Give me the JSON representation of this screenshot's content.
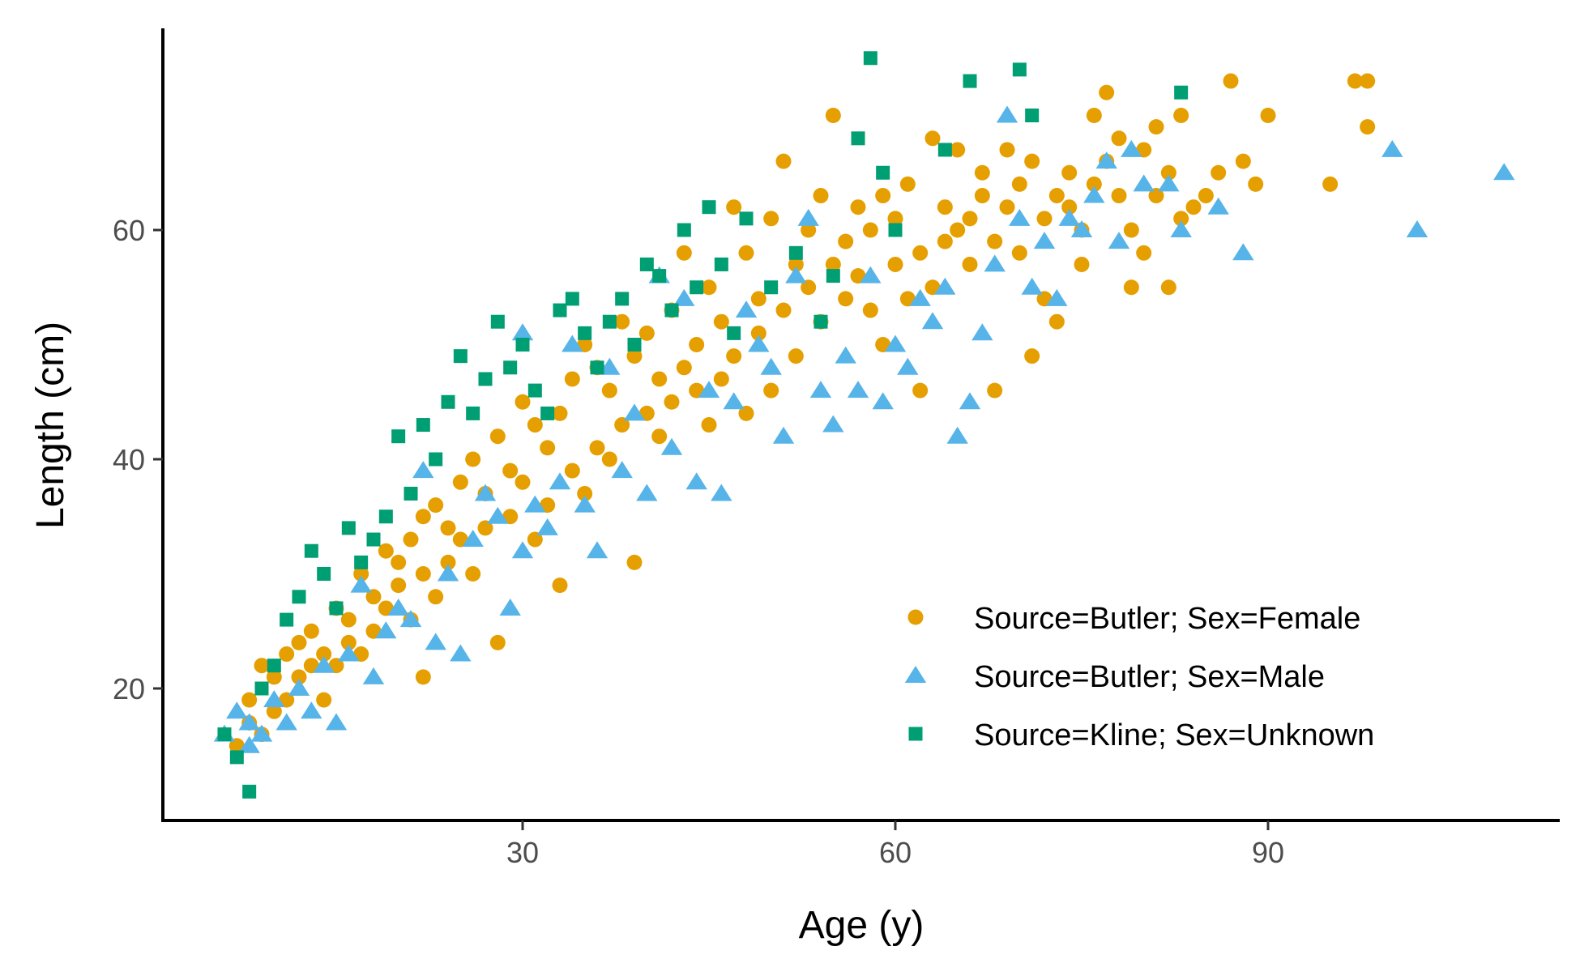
{
  "chart_data": {
    "type": "scatter",
    "xlabel": "Age (y)",
    "ylabel": "Length (cm)",
    "xlim": [
      0,
      113
    ],
    "ylim": [
      9,
      77
    ],
    "x_ticks": [
      {
        "value": 30,
        "label": "30"
      },
      {
        "value": 60,
        "label": "60"
      },
      {
        "value": 90,
        "label": "90"
      }
    ],
    "y_ticks": [
      {
        "value": 20,
        "label": "20"
      },
      {
        "value": 40,
        "label": "40"
      },
      {
        "value": 60,
        "label": "60"
      }
    ],
    "grid": false,
    "legend_position": "bottom-right",
    "series": [
      {
        "name": "Source=Butler; Sex=Female",
        "marker": "circle",
        "color": "#E69F00",
        "points": [
          [
            7,
            15
          ],
          [
            8,
            17
          ],
          [
            8,
            19
          ],
          [
            9,
            22
          ],
          [
            9,
            16
          ],
          [
            10,
            18
          ],
          [
            10,
            21
          ],
          [
            11,
            23
          ],
          [
            11,
            19
          ],
          [
            12,
            24
          ],
          [
            12,
            21
          ],
          [
            13,
            22
          ],
          [
            13,
            25
          ],
          [
            14,
            19
          ],
          [
            14,
            23
          ],
          [
            15,
            27
          ],
          [
            15,
            22
          ],
          [
            16,
            26
          ],
          [
            16,
            24
          ],
          [
            17,
            30
          ],
          [
            17,
            23
          ],
          [
            18,
            28
          ],
          [
            18,
            25
          ],
          [
            19,
            32
          ],
          [
            19,
            27
          ],
          [
            20,
            29
          ],
          [
            20,
            31
          ],
          [
            21,
            33
          ],
          [
            21,
            26
          ],
          [
            22,
            35
          ],
          [
            22,
            30
          ],
          [
            22,
            21
          ],
          [
            23,
            36
          ],
          [
            23,
            28
          ],
          [
            24,
            34
          ],
          [
            24,
            31
          ],
          [
            25,
            38
          ],
          [
            25,
            33
          ],
          [
            26,
            40
          ],
          [
            26,
            30
          ],
          [
            27,
            37
          ],
          [
            27,
            34
          ],
          [
            28,
            42
          ],
          [
            28,
            24
          ],
          [
            29,
            39
          ],
          [
            29,
            35
          ],
          [
            30,
            45
          ],
          [
            30,
            38
          ],
          [
            31,
            43
          ],
          [
            31,
            33
          ],
          [
            32,
            41
          ],
          [
            32,
            36
          ],
          [
            33,
            44
          ],
          [
            33,
            29
          ],
          [
            34,
            47
          ],
          [
            34,
            39
          ],
          [
            35,
            50
          ],
          [
            35,
            37
          ],
          [
            36,
            48
          ],
          [
            36,
            41
          ],
          [
            37,
            46
          ],
          [
            37,
            40
          ],
          [
            38,
            52
          ],
          [
            38,
            43
          ],
          [
            39,
            49
          ],
          [
            39,
            31
          ],
          [
            40,
            51
          ],
          [
            40,
            44
          ],
          [
            41,
            47
          ],
          [
            41,
            42
          ],
          [
            42,
            53
          ],
          [
            42,
            45
          ],
          [
            43,
            58
          ],
          [
            43,
            48
          ],
          [
            44,
            50
          ],
          [
            44,
            46
          ],
          [
            45,
            55
          ],
          [
            45,
            43
          ],
          [
            46,
            52
          ],
          [
            46,
            47
          ],
          [
            47,
            62
          ],
          [
            47,
            49
          ],
          [
            48,
            58
          ],
          [
            48,
            44
          ],
          [
            49,
            54
          ],
          [
            49,
            51
          ],
          [
            50,
            61
          ],
          [
            50,
            46
          ],
          [
            51,
            66
          ],
          [
            51,
            53
          ],
          [
            52,
            57
          ],
          [
            52,
            49
          ],
          [
            53,
            60
          ],
          [
            53,
            55
          ],
          [
            54,
            63
          ],
          [
            54,
            52
          ],
          [
            55,
            70
          ],
          [
            55,
            57
          ],
          [
            56,
            59
          ],
          [
            56,
            54
          ],
          [
            57,
            62
          ],
          [
            57,
            56
          ],
          [
            58,
            53
          ],
          [
            58,
            60
          ],
          [
            59,
            63
          ],
          [
            59,
            50
          ],
          [
            60,
            57
          ],
          [
            60,
            61
          ],
          [
            61,
            64
          ],
          [
            61,
            54
          ],
          [
            62,
            58
          ],
          [
            62,
            46
          ],
          [
            63,
            68
          ],
          [
            63,
            55
          ],
          [
            64,
            62
          ],
          [
            64,
            59
          ],
          [
            65,
            67
          ],
          [
            65,
            60
          ],
          [
            66,
            61
          ],
          [
            66,
            57
          ],
          [
            67,
            63
          ],
          [
            67,
            65
          ],
          [
            68,
            59
          ],
          [
            68,
            46
          ],
          [
            69,
            62
          ],
          [
            69,
            67
          ],
          [
            70,
            58
          ],
          [
            70,
            64
          ],
          [
            71,
            49
          ],
          [
            71,
            66
          ],
          [
            72,
            61
          ],
          [
            72,
            54
          ],
          [
            73,
            63
          ],
          [
            73,
            52
          ],
          [
            74,
            62
          ],
          [
            74,
            65
          ],
          [
            75,
            57
          ],
          [
            75,
            60
          ],
          [
            76,
            70
          ],
          [
            76,
            64
          ],
          [
            77,
            72
          ],
          [
            77,
            66
          ],
          [
            78,
            63
          ],
          [
            78,
            68
          ],
          [
            79,
            60
          ],
          [
            79,
            55
          ],
          [
            80,
            67
          ],
          [
            80,
            58
          ],
          [
            81,
            69
          ],
          [
            81,
            63
          ],
          [
            82,
            65
          ],
          [
            82,
            55
          ],
          [
            83,
            70
          ],
          [
            83,
            61
          ],
          [
            84,
            62
          ],
          [
            85,
            63
          ],
          [
            86,
            65
          ],
          [
            87,
            73
          ],
          [
            88,
            66
          ],
          [
            89,
            64
          ],
          [
            90,
            70
          ],
          [
            95,
            64
          ],
          [
            97,
            73
          ],
          [
            98,
            73
          ],
          [
            98,
            69
          ]
        ]
      },
      {
        "name": "Source=Butler; Sex=Male",
        "marker": "triangle",
        "color": "#56B4E9",
        "points": [
          [
            6,
            16
          ],
          [
            7,
            18
          ],
          [
            8,
            15
          ],
          [
            8,
            17
          ],
          [
            9,
            16
          ],
          [
            10,
            19
          ],
          [
            11,
            17
          ],
          [
            12,
            20
          ],
          [
            13,
            18
          ],
          [
            14,
            22
          ],
          [
            15,
            17
          ],
          [
            16,
            23
          ],
          [
            17,
            29
          ],
          [
            18,
            21
          ],
          [
            19,
            25
          ],
          [
            20,
            27
          ],
          [
            21,
            26
          ],
          [
            22,
            39
          ],
          [
            23,
            24
          ],
          [
            24,
            30
          ],
          [
            25,
            23
          ],
          [
            26,
            33
          ],
          [
            27,
            37
          ],
          [
            28,
            35
          ],
          [
            29,
            27
          ],
          [
            30,
            51
          ],
          [
            30,
            32
          ],
          [
            31,
            36
          ],
          [
            32,
            34
          ],
          [
            33,
            38
          ],
          [
            34,
            50
          ],
          [
            35,
            36
          ],
          [
            36,
            32
          ],
          [
            37,
            48
          ],
          [
            38,
            39
          ],
          [
            39,
            44
          ],
          [
            40,
            37
          ],
          [
            41,
            56
          ],
          [
            42,
            41
          ],
          [
            43,
            54
          ],
          [
            44,
            38
          ],
          [
            45,
            46
          ],
          [
            46,
            37
          ],
          [
            47,
            45
          ],
          [
            48,
            53
          ],
          [
            49,
            50
          ],
          [
            50,
            48
          ],
          [
            51,
            42
          ],
          [
            52,
            56
          ],
          [
            53,
            61
          ],
          [
            54,
            46
          ],
          [
            55,
            43
          ],
          [
            56,
            49
          ],
          [
            57,
            46
          ],
          [
            58,
            56
          ],
          [
            59,
            45
          ],
          [
            60,
            50
          ],
          [
            61,
            48
          ],
          [
            62,
            54
          ],
          [
            63,
            52
          ],
          [
            64,
            55
          ],
          [
            65,
            42
          ],
          [
            66,
            45
          ],
          [
            67,
            51
          ],
          [
            68,
            57
          ],
          [
            69,
            70
          ],
          [
            70,
            61
          ],
          [
            71,
            55
          ],
          [
            72,
            59
          ],
          [
            73,
            54
          ],
          [
            74,
            61
          ],
          [
            75,
            60
          ],
          [
            76,
            63
          ],
          [
            77,
            66
          ],
          [
            78,
            59
          ],
          [
            79,
            67
          ],
          [
            80,
            64
          ],
          [
            82,
            64
          ],
          [
            83,
            60
          ],
          [
            86,
            62
          ],
          [
            88,
            58
          ],
          [
            100,
            67
          ],
          [
            102,
            60
          ],
          [
            109,
            65
          ]
        ]
      },
      {
        "name": "Source=Kline; Sex=Unknown",
        "marker": "square",
        "color": "#009E73",
        "points": [
          [
            6,
            16
          ],
          [
            7,
            14
          ],
          [
            8,
            11
          ],
          [
            9,
            20
          ],
          [
            10,
            22
          ],
          [
            11,
            26
          ],
          [
            12,
            28
          ],
          [
            13,
            32
          ],
          [
            14,
            30
          ],
          [
            15,
            27
          ],
          [
            16,
            34
          ],
          [
            17,
            31
          ],
          [
            18,
            33
          ],
          [
            19,
            35
          ],
          [
            20,
            42
          ],
          [
            21,
            37
          ],
          [
            22,
            43
          ],
          [
            23,
            40
          ],
          [
            24,
            45
          ],
          [
            25,
            49
          ],
          [
            26,
            44
          ],
          [
            27,
            47
          ],
          [
            28,
            52
          ],
          [
            29,
            48
          ],
          [
            30,
            50
          ],
          [
            31,
            46
          ],
          [
            32,
            44
          ],
          [
            33,
            53
          ],
          [
            34,
            54
          ],
          [
            35,
            51
          ],
          [
            36,
            48
          ],
          [
            37,
            52
          ],
          [
            38,
            54
          ],
          [
            39,
            50
          ],
          [
            40,
            57
          ],
          [
            41,
            56
          ],
          [
            42,
            53
          ],
          [
            43,
            60
          ],
          [
            44,
            55
          ],
          [
            45,
            62
          ],
          [
            46,
            57
          ],
          [
            47,
            51
          ],
          [
            48,
            61
          ],
          [
            50,
            55
          ],
          [
            52,
            58
          ],
          [
            54,
            52
          ],
          [
            55,
            56
          ],
          [
            57,
            68
          ],
          [
            58,
            75
          ],
          [
            59,
            65
          ],
          [
            60,
            60
          ],
          [
            64,
            67
          ],
          [
            66,
            73
          ],
          [
            70,
            74
          ],
          [
            71,
            70
          ],
          [
            83,
            72
          ]
        ]
      }
    ]
  }
}
